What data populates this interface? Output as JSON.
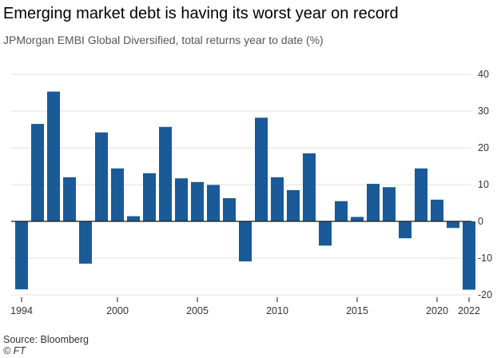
{
  "header": {
    "title": "Emerging market debt is having its worst year on record",
    "subtitle": "JPMorgan EMBI Global Diversified, total returns year to date (%)"
  },
  "footer": {
    "source": "Source: Bloomberg",
    "credit": "© FT"
  },
  "colors": {
    "bar": "#1a5a96",
    "grid": "#e6e2dc",
    "zero_line": "#1a1a1a",
    "text": "#333333"
  },
  "chart_data": {
    "type": "bar",
    "title": "Emerging market debt is having its worst year on record",
    "subtitle": "JPMorgan EMBI Global Diversified, total returns year to date (%)",
    "xlabel": "",
    "ylabel": "",
    "ylim": [
      -20,
      40
    ],
    "yticks": [
      -20,
      -10,
      0,
      10,
      20,
      30,
      40
    ],
    "xtick_labels": [
      "1994",
      "2000",
      "2005",
      "2010",
      "2015",
      "2020",
      "2022"
    ],
    "grid": true,
    "y_axis_side": "right",
    "categories": [
      1994,
      1995,
      1996,
      1997,
      1998,
      1999,
      2000,
      2001,
      2002,
      2003,
      2004,
      2005,
      2006,
      2007,
      2008,
      2009,
      2010,
      2011,
      2012,
      2013,
      2014,
      2015,
      2016,
      2017,
      2018,
      2019,
      2020,
      2021,
      2022
    ],
    "values": [
      -18.5,
      26.5,
      35.3,
      12.0,
      -11.5,
      24.2,
      14.4,
      1.4,
      13.1,
      25.7,
      11.7,
      10.7,
      9.9,
      6.3,
      -10.9,
      28.2,
      12.0,
      8.5,
      18.5,
      -6.6,
      5.5,
      1.2,
      10.2,
      9.3,
      -4.6,
      14.4,
      5.9,
      -1.8,
      -18.6
    ]
  }
}
